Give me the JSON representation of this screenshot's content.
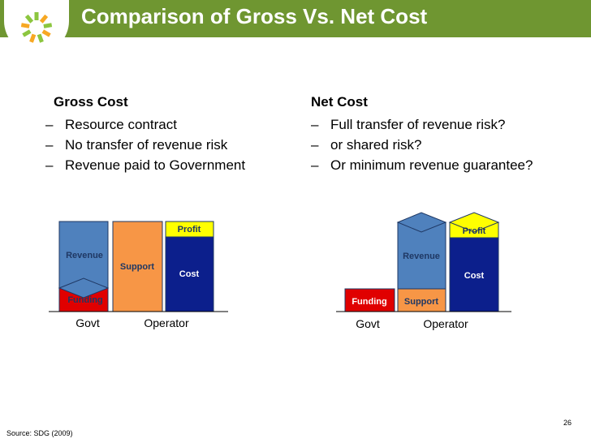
{
  "header": {
    "title": "Comparison of Gross Vs. Net Cost"
  },
  "gross": {
    "heading": "Gross Cost",
    "bullets": [
      "Resource contract",
      "No transfer of revenue risk",
      "Revenue paid to Government"
    ]
  },
  "net": {
    "heading": "Net Cost",
    "bullets": [
      "Full transfer of revenue risk?",
      "or shared risk?",
      "Or minimum revenue guarantee?"
    ]
  },
  "diagram_gross": {
    "revenue": "Revenue",
    "support": "Support",
    "profit": "Profit",
    "cost": "Cost",
    "funding": "Funding",
    "govt": "Govt",
    "operator": "Operator"
  },
  "diagram_net": {
    "revenue": "Revenue",
    "support": "Support",
    "profit": "Profit",
    "cost": "Cost",
    "funding": "Funding",
    "govt": "Govt",
    "operator": "Operator"
  },
  "footer": {
    "source": "Source: SDG (2009)",
    "page": "26"
  },
  "colors": {
    "header_green": "#6f9631",
    "revenue_blue": "#4f81bd",
    "support_orange": "#f79646",
    "cost_navy": "#0c1f8c",
    "funding_red": "#e00000",
    "profit_yellow": "#ffff00",
    "label_navy": "#1f3864"
  }
}
